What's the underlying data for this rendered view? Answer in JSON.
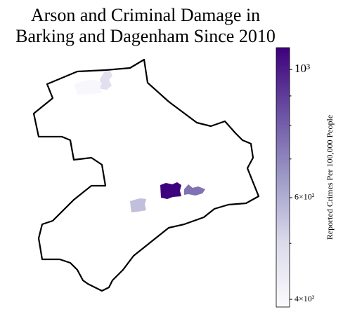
{
  "chart_data": {
    "type": "choropleth",
    "title": [
      "Arson and Criminal Damage in",
      "Barking and Dagenham Since 2010"
    ],
    "colorbar_label": "Reported Crimes Per 100,000 People",
    "colormap": "Purples",
    "log_scale": true,
    "clim": [
      388,
      1091
    ],
    "cticks": [
      {
        "value": 1000,
        "label": "10³"
      },
      {
        "value": 600,
        "label": "6×10²"
      },
      {
        "value": 400,
        "label": "4×10²"
      }
    ],
    "minor_ticks": [
      500,
      700,
      800,
      900
    ],
    "regions": [
      1091,
      750,
      560,
      480,
      400
    ]
  }
}
